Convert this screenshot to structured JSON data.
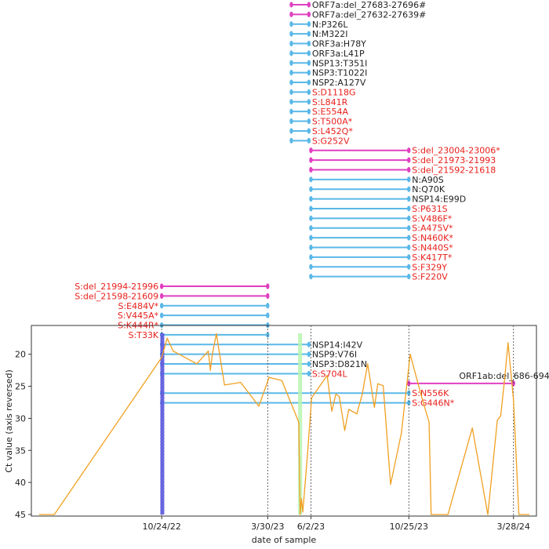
{
  "chart_data": [
    {
      "type": "timeline",
      "title": "",
      "description_of_encoding": "Horizontal segments mark the period (in date units) during which each mutation was detected; magenta = deletions, blue = substitutions; red labels = spike (S) mutations",
      "colors": {
        "deletion": "#e040c0",
        "substitution": "#5ab8e8",
        "spike_label": "#e8201c",
        "other_label": "#222222"
      },
      "mutations": [
        {
          "label": "ORF7a:del_27683-27696#",
          "start": "2023-05-04",
          "end": "2023-05-30",
          "kind": "deletion",
          "spike": false
        },
        {
          "label": "ORF7a:del_27632-27639#",
          "start": "2023-05-04",
          "end": "2023-05-30",
          "kind": "deletion",
          "spike": false
        },
        {
          "label": "N:P326L",
          "start": "2023-05-04",
          "end": "2023-05-30",
          "kind": "substitution",
          "spike": false
        },
        {
          "label": "N:M322I",
          "start": "2023-05-04",
          "end": "2023-05-30",
          "kind": "substitution",
          "spike": false
        },
        {
          "label": "ORF3a:H78Y",
          "start": "2023-05-04",
          "end": "2023-05-30",
          "kind": "substitution",
          "spike": false
        },
        {
          "label": "ORF3a:L41P",
          "start": "2023-05-04",
          "end": "2023-05-30",
          "kind": "substitution",
          "spike": false
        },
        {
          "label": "NSP13:T351I",
          "start": "2023-05-04",
          "end": "2023-05-30",
          "kind": "substitution",
          "spike": false
        },
        {
          "label": "NSP3:T1022I",
          "start": "2023-05-04",
          "end": "2023-05-30",
          "kind": "substitution",
          "spike": false
        },
        {
          "label": "NSP2:A127V",
          "start": "2023-05-04",
          "end": "2023-05-30",
          "kind": "substitution",
          "spike": false
        },
        {
          "label": "S:D1118G",
          "start": "2023-05-04",
          "end": "2023-05-30",
          "kind": "substitution",
          "spike": true
        },
        {
          "label": "S:L841R",
          "start": "2023-05-04",
          "end": "2023-05-30",
          "kind": "substitution",
          "spike": true
        },
        {
          "label": "S:E554A",
          "start": "2023-05-04",
          "end": "2023-05-30",
          "kind": "substitution",
          "spike": true
        },
        {
          "label": "S:T500A*",
          "start": "2023-05-04",
          "end": "2023-05-30",
          "kind": "substitution",
          "spike": true
        },
        {
          "label": "S:L452Q*",
          "start": "2023-05-04",
          "end": "2023-05-30",
          "kind": "substitution",
          "spike": true
        },
        {
          "label": "S:G252V",
          "start": "2023-05-04",
          "end": "2023-05-30",
          "kind": "substitution",
          "spike": true
        },
        {
          "label": "S:del_23004-23006*",
          "start": "2023-06-02",
          "end": "2023-10-25",
          "kind": "deletion",
          "spike": true
        },
        {
          "label": "S:del_21973-21993",
          "start": "2023-06-02",
          "end": "2023-10-25",
          "kind": "deletion",
          "spike": true
        },
        {
          "label": "S:del_21592-21618",
          "start": "2023-06-02",
          "end": "2023-10-25",
          "kind": "deletion",
          "spike": true
        },
        {
          "label": "N:A90S",
          "start": "2023-06-02",
          "end": "2023-10-25",
          "kind": "substitution",
          "spike": false
        },
        {
          "label": "N:Q70K",
          "start": "2023-06-02",
          "end": "2023-10-25",
          "kind": "substitution",
          "spike": false
        },
        {
          "label": "NSP14:E99D",
          "start": "2023-06-02",
          "end": "2023-10-25",
          "kind": "substitution",
          "spike": false
        },
        {
          "label": "S:P631S",
          "start": "2023-06-02",
          "end": "2023-10-25",
          "kind": "substitution",
          "spike": true
        },
        {
          "label": "S:V486F*",
          "start": "2023-06-02",
          "end": "2023-10-25",
          "kind": "substitution",
          "spike": true
        },
        {
          "label": "S:A475V*",
          "start": "2023-06-02",
          "end": "2023-10-25",
          "kind": "substitution",
          "spike": true
        },
        {
          "label": "S:N460K*",
          "start": "2023-06-02",
          "end": "2023-10-25",
          "kind": "substitution",
          "spike": true
        },
        {
          "label": "S:N440S*",
          "start": "2023-06-02",
          "end": "2023-10-25",
          "kind": "substitution",
          "spike": true
        },
        {
          "label": "S:K417T*",
          "start": "2023-06-02",
          "end": "2023-10-25",
          "kind": "substitution",
          "spike": true
        },
        {
          "label": "S:F329Y",
          "start": "2023-06-02",
          "end": "2023-10-25",
          "kind": "substitution",
          "spike": true
        },
        {
          "label": "S:F220V",
          "start": "2023-06-02",
          "end": "2023-10-25",
          "kind": "substitution",
          "spike": true
        },
        {
          "label": "S:del_21994-21996",
          "start": "2022-10-24",
          "end": "2023-03-30",
          "kind": "deletion",
          "spike": true
        },
        {
          "label": "S:del_21598-21609",
          "start": "2022-10-24",
          "end": "2023-03-30",
          "kind": "deletion",
          "spike": true
        },
        {
          "label": "S:E484V*",
          "start": "2022-10-24",
          "end": "2023-03-30",
          "kind": "substitution",
          "spike": true
        },
        {
          "label": "S:V445A*",
          "start": "2022-10-24",
          "end": "2023-03-30",
          "kind": "substitution",
          "spike": true
        },
        {
          "label": "S:K444R*",
          "start": "2022-10-24",
          "end": "2023-03-30",
          "kind": "substitution",
          "spike": true
        },
        {
          "label": "S:T33K",
          "start": "2022-10-24",
          "end": "2023-03-30",
          "kind": "substitution",
          "spike": true
        },
        {
          "label": "NSP14:I42V",
          "start": "2022-10-24",
          "end": "2023-05-30",
          "kind": "substitution",
          "spike": false
        },
        {
          "label": "NSP9:V76I",
          "start": "2022-10-24",
          "end": "2023-05-30",
          "kind": "substitution",
          "spike": false
        },
        {
          "label": "NSP3:D821N",
          "start": "2022-10-24",
          "end": "2023-05-30",
          "kind": "substitution",
          "spike": false
        },
        {
          "label": "S:S704L",
          "start": "2022-10-24",
          "end": "2023-05-30",
          "kind": "substitution",
          "spike": true
        },
        {
          "label": "ORF1ab:del_686-694",
          "start": "2023-10-25",
          "end": "2024-03-28",
          "kind": "deletion",
          "spike": false
        },
        {
          "label": "S:N556K",
          "start": "2022-10-24",
          "end": "2023-10-25",
          "kind": "substitution",
          "spike": true
        },
        {
          "label": "S:G446N*",
          "start": "2022-10-24",
          "end": "2023-10-25",
          "kind": "substitution",
          "spike": true
        }
      ]
    },
    {
      "type": "line",
      "title": "",
      "xlabel": "date of sample",
      "ylabel": "Ct value (axis reversed)",
      "x_range": [
        "2022-04-14",
        "2024-05-01"
      ],
      "ylim": [
        45,
        16
      ],
      "y_ticks": [
        20,
        25,
        30,
        35,
        40,
        45
      ],
      "x_ticks": [
        {
          "date": "2022-10-24",
          "label": "10/24/22"
        },
        {
          "date": "2023-03-30",
          "label": "3/30/23"
        },
        {
          "date": "2023-06-02",
          "label": "6/2/23"
        },
        {
          "date": "2023-10-25",
          "label": "10/25/23"
        },
        {
          "date": "2024-03-28",
          "label": "3/28/24"
        }
      ],
      "vertical_reference_dates": [
        "2022-10-24",
        "2023-03-30",
        "2023-06-02",
        "2023-10-25",
        "2024-03-28"
      ],
      "series_color": "#f0a020",
      "shaded_bands": [
        {
          "start": "2022-10-22",
          "end": "2022-10-26",
          "color": "#6b67e8",
          "hatched": true
        },
        {
          "start": "2023-05-14",
          "end": "2023-05-20",
          "color": "#b8f5b0",
          "hatched": false
        }
      ],
      "points": [
        {
          "x": "2022-04-26",
          "y": 45
        },
        {
          "x": "2022-05-18",
          "y": 45
        },
        {
          "x": "2022-10-24",
          "y": 20.5
        },
        {
          "x": "2022-11-01",
          "y": 17.5
        },
        {
          "x": "2022-11-10",
          "y": 19.5
        },
        {
          "x": "2022-12-15",
          "y": 21.5
        },
        {
          "x": "2023-01-01",
          "y": 19.5
        },
        {
          "x": "2023-01-04",
          "y": 22.5
        },
        {
          "x": "2023-01-07",
          "y": 20
        },
        {
          "x": "2023-01-13",
          "y": 16.8
        },
        {
          "x": "2023-01-25",
          "y": 24.8
        },
        {
          "x": "2023-02-18",
          "y": 24.4
        },
        {
          "x": "2023-03-17",
          "y": 28.1
        },
        {
          "x": "2023-04-01",
          "y": 23.6
        },
        {
          "x": "2023-04-20",
          "y": 24.1
        },
        {
          "x": "2023-05-15",
          "y": 30.6
        },
        {
          "x": "2023-05-17",
          "y": 45
        },
        {
          "x": "2023-05-19",
          "y": 42.5
        },
        {
          "x": "2023-05-21",
          "y": 44.6
        },
        {
          "x": "2023-05-28",
          "y": 35.6
        },
        {
          "x": "2023-06-03",
          "y": 26.8
        },
        {
          "x": "2023-06-26",
          "y": 23.3
        },
        {
          "x": "2023-07-03",
          "y": 28.9
        },
        {
          "x": "2023-07-09",
          "y": 26.2
        },
        {
          "x": "2023-07-14",
          "y": 26.6
        },
        {
          "x": "2023-07-22",
          "y": 31.9
        },
        {
          "x": "2023-07-28",
          "y": 28.6
        },
        {
          "x": "2023-08-09",
          "y": 29.3
        },
        {
          "x": "2023-08-17",
          "y": 26.2
        },
        {
          "x": "2023-08-25",
          "y": 21.5
        },
        {
          "x": "2023-09-04",
          "y": 28.3
        },
        {
          "x": "2023-09-09",
          "y": 24.6
        },
        {
          "x": "2023-09-17",
          "y": 24.9
        },
        {
          "x": "2023-09-28",
          "y": 40.3
        },
        {
          "x": "2023-10-14",
          "y": 32.3
        },
        {
          "x": "2023-10-27",
          "y": 20
        },
        {
          "x": "2023-11-12",
          "y": 26.3
        },
        {
          "x": "2023-11-24",
          "y": 30.6
        },
        {
          "x": "2023-11-27",
          "y": 45
        },
        {
          "x": "2023-12-22",
          "y": 45
        },
        {
          "x": "2024-01-27",
          "y": 31.5
        },
        {
          "x": "2024-02-19",
          "y": 45
        },
        {
          "x": "2024-03-04",
          "y": 30.3
        },
        {
          "x": "2024-03-09",
          "y": 29.6
        },
        {
          "x": "2024-03-15",
          "y": 23.8
        },
        {
          "x": "2024-03-20",
          "y": 18.2
        },
        {
          "x": "2024-03-28",
          "y": 27.1
        },
        {
          "x": "2024-04-05",
          "y": 45
        },
        {
          "x": "2024-04-20",
          "y": 45
        }
      ]
    }
  ]
}
